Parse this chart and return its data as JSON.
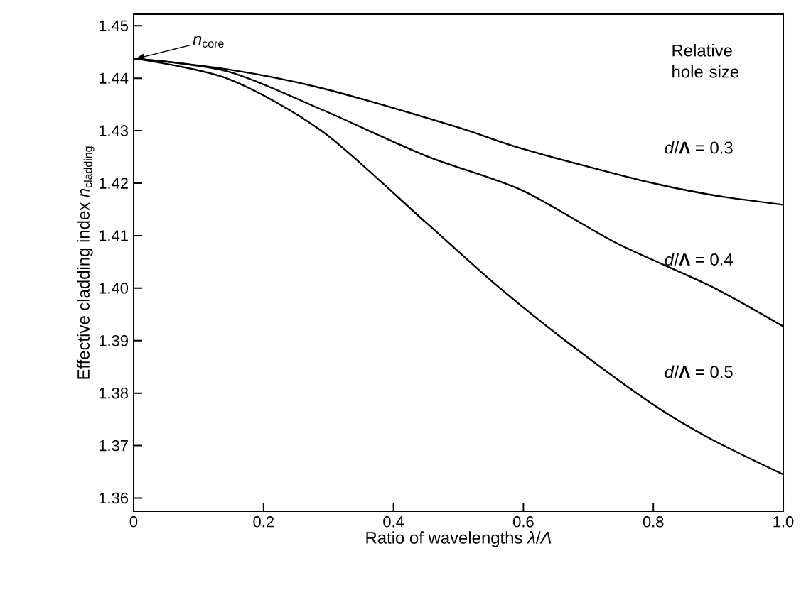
{
  "chart_data": {
    "type": "line",
    "xlabel": "Ratio of wavelengths *λ*/*Λ*",
    "ylabel": "Effective cladding index *n*$_{cladding}$",
    "xlim": [
      0,
      1
    ],
    "ylim": [
      1.3575,
      1.4522
    ],
    "xticks": [
      0,
      0.2,
      0.4,
      0.6,
      0.8,
      {
        "value": 1,
        "label": "1.0"
      }
    ],
    "yticks": [
      1.36,
      1.37,
      1.38,
      1.39,
      {
        "value": 1.4,
        "label": "1.40"
      },
      1.41,
      1.42,
      1.43,
      1.44,
      1.45
    ],
    "line_style": "solid",
    "series": [
      {
        "name": "*d*/**Λ** = 0.3",
        "color": "#000000",
        "x": [
          0,
          0.145,
          0.29,
          0.495,
          0.597,
          0.779,
          0.888,
          1
        ],
        "values": [
          1.4438,
          1.4417,
          1.4381,
          1.4308,
          1.4266,
          1.4206,
          1.4178,
          1.4159
        ]
      },
      {
        "name": "*d*/**Λ** = 0.4",
        "color": "#000000",
        "x": [
          0,
          0.145,
          0.29,
          0.45,
          0.597,
          0.743,
          0.888,
          1
        ],
        "values": [
          1.4438,
          1.4413,
          1.434,
          1.4252,
          1.4187,
          1.4086,
          1.4004,
          1.3927
        ]
      },
      {
        "name": "*d*/**Λ** = 0.5",
        "color": "#000000",
        "x": [
          0,
          0.145,
          0.29,
          0.45,
          0.56,
          0.67,
          0.8,
          0.888,
          1
        ],
        "values": [
          1.4438,
          1.4399,
          1.4299,
          1.4125,
          1.4004,
          1.3895,
          1.3778,
          1.3713,
          1.3645
        ]
      }
    ],
    "annotations": [
      "*n*$_{core}$",
      "Relative hole size"
    ]
  }
}
